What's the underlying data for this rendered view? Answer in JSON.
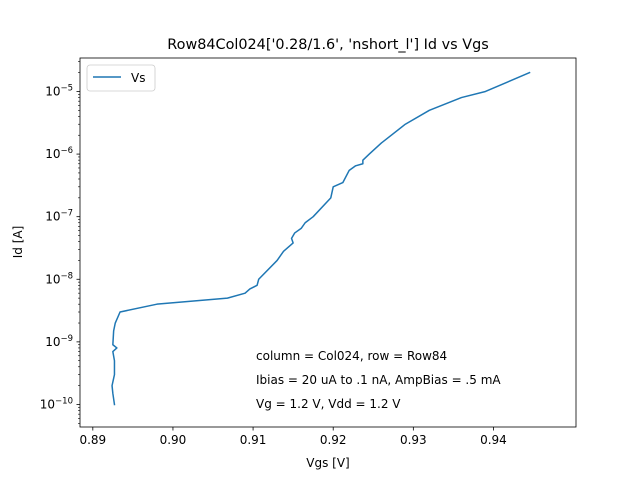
{
  "chart_data": {
    "type": "line",
    "title": "Row84Col024['0.28/1.6', 'nshort_l'] Id vs Vgs",
    "xlabel": "Vgs [V]",
    "ylabel": "Id [A]",
    "xlim": [
      0.8884,
      0.9503
    ],
    "ylim_exp": [
      -10.36,
      -4.465
    ],
    "yscale": "log",
    "grid": false,
    "legend": "top-left",
    "x_ticks": [
      {
        "value": 0.89,
        "label": "0.89"
      },
      {
        "value": 0.9,
        "label": "0.90"
      },
      {
        "value": 0.91,
        "label": "0.91"
      },
      {
        "value": 0.92,
        "label": "0.92"
      },
      {
        "value": 0.93,
        "label": "0.93"
      },
      {
        "value": 0.94,
        "label": "0.94"
      }
    ],
    "y_ticks": [
      {
        "exp": -10,
        "base": "10",
        "power": "−10"
      },
      {
        "exp": -9,
        "base": "10",
        "power": "−9"
      },
      {
        "exp": -8,
        "base": "10",
        "power": "−8"
      },
      {
        "exp": -7,
        "base": "10",
        "power": "−7"
      },
      {
        "exp": -6,
        "base": "10",
        "power": "−6"
      },
      {
        "exp": -5,
        "base": "10",
        "power": "−5"
      }
    ],
    "series": [
      {
        "name": "Vs",
        "color": "#1f77b4",
        "x": [
          0.8927,
          0.8925,
          0.8924,
          0.8927,
          0.8927,
          0.8925,
          0.893,
          0.8925,
          0.8926,
          0.8928,
          0.8934,
          0.898,
          0.9068,
          0.909,
          0.9096,
          0.9105,
          0.9107,
          0.913,
          0.9138,
          0.915,
          0.9148,
          0.9152,
          0.916,
          0.9165,
          0.9175,
          0.9197,
          0.92,
          0.9212,
          0.922,
          0.9228,
          0.9237,
          0.9237,
          0.9245,
          0.926,
          0.929,
          0.932,
          0.936,
          0.939,
          0.9445
        ],
        "y": [
          1e-10,
          1.5e-10,
          2e-10,
          3e-10,
          5e-10,
          7e-10,
          8e-10,
          9e-10,
          1.5e-09,
          2e-09,
          3e-09,
          4e-09,
          5e-09,
          6e-09,
          7e-09,
          8e-09,
          1e-08,
          2e-08,
          2.8e-08,
          3.8e-08,
          4.5e-08,
          5.5e-08,
          6.5e-08,
          8e-08,
          1e-07,
          2e-07,
          3e-07,
          3.5e-07,
          5.5e-07,
          6.5e-07,
          7e-07,
          8e-07,
          1e-06,
          1.5e-06,
          3e-06,
          5e-06,
          8e-06,
          1e-05,
          2e-05
        ]
      }
    ],
    "annotations": [
      "column = Col024, row = Row84",
      "Ibias = 20 uA to .1 nA, AmpBias = .5 mA",
      "Vg = 1.2 V, Vdd = 1.2 V"
    ]
  }
}
